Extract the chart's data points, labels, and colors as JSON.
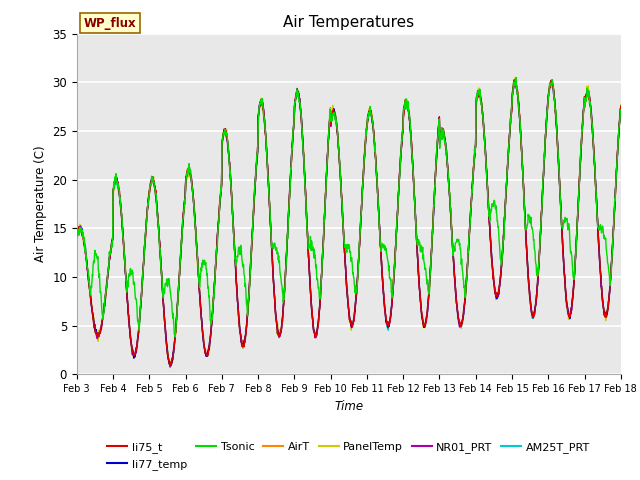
{
  "title": "Air Temperatures",
  "xlabel": "Time",
  "ylabel": "Air Temperature (C)",
  "ylim": [
    0,
    35
  ],
  "xlim_days": [
    3,
    18
  ],
  "background_color": "#ffffff",
  "plot_bg_color": "#e8e8e8",
  "grid_color": "#ffffff",
  "series_colors": {
    "li75_t": "#dd0000",
    "li77_temp": "#0000cc",
    "Tsonic": "#00dd00",
    "AirT": "#ff8800",
    "PanelTemp": "#cccc00",
    "NR01_PRT": "#aa00aa",
    "AM25T_PRT": "#00cccc"
  },
  "wp_flux_label": "WP_flux",
  "wp_flux_bg": "#ffffcc",
  "wp_flux_border": "#996600",
  "wp_flux_text_color": "#880000",
  "daily_mins": [
    4,
    2,
    1,
    2,
    3,
    4,
    4,
    5,
    5,
    5,
    5,
    8,
    6,
    6,
    6
  ],
  "daily_maxes": [
    15,
    20,
    20,
    21,
    25,
    28,
    29,
    27,
    27,
    28,
    25,
    29,
    30,
    30,
    29
  ],
  "tsonic_bonus": [
    8,
    8,
    8,
    9,
    9,
    8,
    8,
    7,
    7,
    7,
    8,
    9,
    9,
    9,
    8
  ]
}
